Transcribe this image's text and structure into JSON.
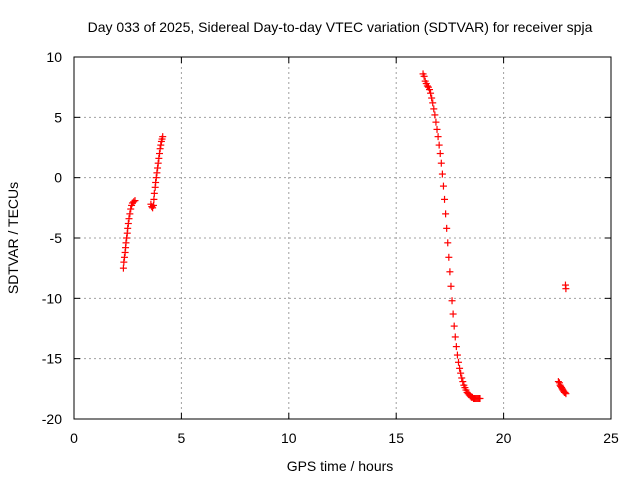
{
  "chart_data": {
    "type": "scatter",
    "title": "Day 033 of 2025, Sidereal Day-to-day VTEC variation (SDTVAR) for receiver spja",
    "xlabel": "GPS time / hours",
    "ylabel": "SDTVAR / TECUs",
    "xlim": [
      0,
      25
    ],
    "ylim": [
      -20,
      10
    ],
    "xticks": [
      0,
      5,
      10,
      15,
      20,
      25
    ],
    "yticks": [
      -20,
      -15,
      -10,
      -5,
      0,
      5,
      10
    ],
    "grid": true,
    "marker": "+",
    "color": "#ff0000",
    "series": [
      {
        "x": [
          2.3,
          2.32,
          2.35,
          2.38,
          2.4,
          2.42,
          2.45,
          2.48,
          2.5,
          2.53,
          2.56,
          2.6,
          2.64,
          2.68,
          2.72,
          2.78,
          2.84,
          3.58,
          3.62,
          3.66,
          3.7,
          3.72,
          3.74,
          3.78,
          3.8,
          3.83,
          3.86,
          3.89,
          3.92,
          3.95,
          3.98,
          4.01,
          4.04,
          4.07,
          4.1,
          4.13
        ],
        "y": [
          -7.5,
          -7.0,
          -6.6,
          -6.2,
          -5.8,
          -5.4,
          -5.0,
          -4.6,
          -4.2,
          -3.8,
          -3.4,
          -3.0,
          -2.6,
          -2.3,
          -2.1,
          -2.0,
          -1.9,
          -2.2,
          -2.4,
          -2.5,
          -2.3,
          -1.8,
          -1.3,
          -0.8,
          -0.4,
          0.0,
          0.4,
          0.8,
          1.2,
          1.6,
          2.0,
          2.4,
          2.7,
          3.0,
          3.2,
          3.4
        ]
      },
      {
        "x": [
          16.25,
          16.3,
          16.35,
          16.4,
          16.45,
          16.5,
          16.55,
          16.6,
          16.65,
          16.7,
          16.75,
          16.8,
          16.85,
          16.9,
          16.95,
          17.0,
          17.05,
          17.1,
          17.15,
          17.2,
          17.25,
          17.3,
          17.35,
          17.4,
          17.45,
          17.5,
          17.55,
          17.6,
          17.65,
          17.7,
          17.75,
          17.8,
          17.85,
          17.9,
          17.95,
          18.0,
          18.05,
          18.1,
          18.15,
          18.2,
          18.25,
          18.3,
          18.35,
          18.4,
          18.45,
          18.5,
          18.55,
          18.6,
          18.65,
          18.7,
          18.75,
          18.8,
          18.85,
          18.9
        ],
        "y": [
          8.6,
          8.4,
          8.0,
          7.8,
          7.6,
          7.5,
          7.3,
          7.0,
          6.6,
          6.2,
          5.7,
          5.2,
          4.6,
          4.0,
          3.4,
          2.7,
          2.0,
          1.2,
          0.3,
          -0.7,
          -1.8,
          -3.0,
          -4.2,
          -5.4,
          -6.6,
          -7.8,
          -9.0,
          -10.2,
          -11.3,
          -12.3,
          -13.2,
          -14.0,
          -14.7,
          -15.3,
          -15.8,
          -16.2,
          -16.6,
          -16.9,
          -17.2,
          -17.4,
          -17.6,
          -17.8,
          -17.9,
          -18.0,
          -18.1,
          -18.2,
          -18.2,
          -18.3,
          -18.3,
          -18.3,
          -18.3,
          -18.3,
          -18.3,
          -18.3
        ]
      },
      {
        "x": [
          22.55,
          22.6,
          22.63,
          22.66,
          22.7,
          22.73,
          22.76,
          22.8,
          22.83,
          22.86,
          22.9,
          22.88,
          22.9
        ],
        "y": [
          -16.9,
          -17.0,
          -17.2,
          -17.3,
          -17.4,
          -17.5,
          -17.6,
          -17.7,
          -17.8,
          -17.8,
          -17.9,
          -8.9,
          -9.2
        ]
      }
    ]
  }
}
